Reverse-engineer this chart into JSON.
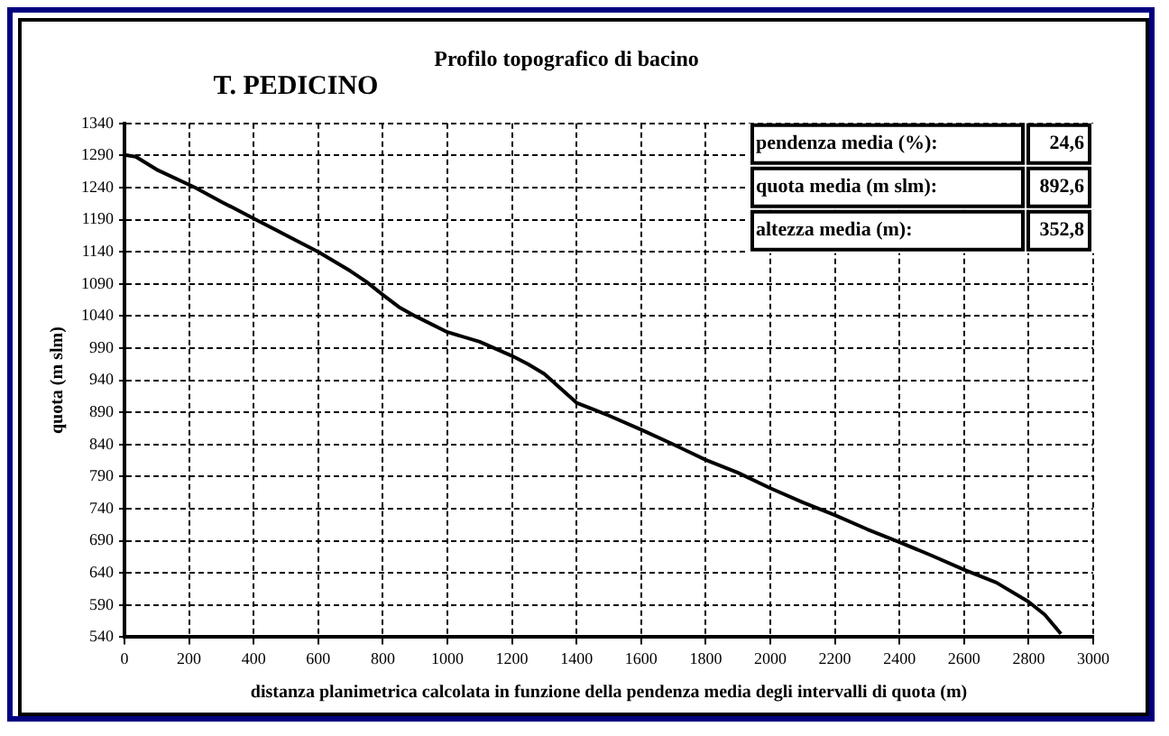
{
  "chart_data": {
    "type": "line",
    "title": "Profilo topografico di bacino",
    "subtitle": "T. PEDICINO",
    "xlabel": "distanza planimetrica calcolata in funzione della pendenza media degli intervalli di quota (m)",
    "ylabel": "quota (m slm)",
    "annotations": [
      "pendenza media (%):",
      "24,6",
      "quota media (m slm):",
      "892,6",
      "altezza media (m):",
      "352,8"
    ],
    "series": [
      {
        "color": "#000000",
        "x": [
          0,
          35,
          100,
          219,
          300,
          400,
          500,
          600,
          700,
          750,
          800,
          850,
          900,
          1000,
          1100,
          1200,
          1250,
          1300,
          1400,
          1450,
          1500,
          1600,
          1700,
          1800,
          1900,
          2000,
          2100,
          2200,
          2300,
          2400,
          2500,
          2600,
          2700,
          2800,
          2850,
          2900
        ],
        "values": [
          1291,
          1288,
          1268,
          1240,
          1218,
          1192,
          1166,
          1140,
          1110,
          1093,
          1073,
          1054,
          1040,
          1015,
          1000,
          978,
          965,
          950,
          905,
          895,
          885,
          863,
          840,
          816,
          796,
          772,
          750,
          730,
          708,
          688,
          667,
          645,
          625,
          595,
          575,
          545
        ]
      }
    ],
    "xlim": [
      0,
      3000
    ],
    "xticks": [
      0,
      200,
      400,
      600,
      800,
      1000,
      1200,
      1400,
      1600,
      1800,
      2000,
      2200,
      2400,
      2600,
      2800,
      3000
    ],
    "ylim": [
      540,
      1340
    ],
    "yticks": [
      540,
      590,
      640,
      690,
      740,
      790,
      840,
      890,
      940,
      990,
      1040,
      1090,
      1140,
      1190,
      1240,
      1290,
      1340
    ],
    "grid": true,
    "legend": false,
    "marker": "none",
    "line_style": "solid"
  }
}
